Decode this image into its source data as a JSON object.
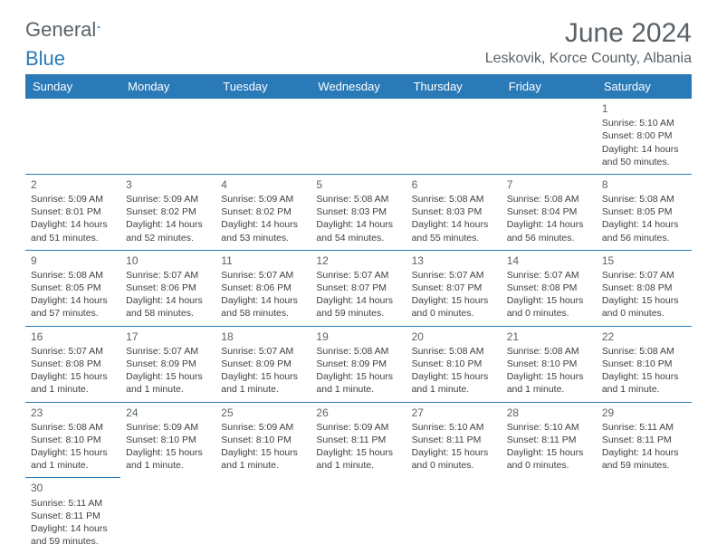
{
  "logo": {
    "text1": "General",
    "text2": "Blue"
  },
  "header": {
    "month_title": "June 2024",
    "location": "Leskovik, Korce County, Albania"
  },
  "colors": {
    "header_bg": "#2a7ab8",
    "header_text": "#ffffff",
    "border": "#2a7ab8",
    "body_text": "#404040",
    "title_text": "#5a6268"
  },
  "weekdays": [
    "Sunday",
    "Monday",
    "Tuesday",
    "Wednesday",
    "Thursday",
    "Friday",
    "Saturday"
  ],
  "weeks": [
    [
      null,
      null,
      null,
      null,
      null,
      null,
      {
        "day": "1",
        "sunrise": "Sunrise: 5:10 AM",
        "sunset": "Sunset: 8:00 PM",
        "daylight": "Daylight: 14 hours and 50 minutes."
      }
    ],
    [
      {
        "day": "2",
        "sunrise": "Sunrise: 5:09 AM",
        "sunset": "Sunset: 8:01 PM",
        "daylight": "Daylight: 14 hours and 51 minutes."
      },
      {
        "day": "3",
        "sunrise": "Sunrise: 5:09 AM",
        "sunset": "Sunset: 8:02 PM",
        "daylight": "Daylight: 14 hours and 52 minutes."
      },
      {
        "day": "4",
        "sunrise": "Sunrise: 5:09 AM",
        "sunset": "Sunset: 8:02 PM",
        "daylight": "Daylight: 14 hours and 53 minutes."
      },
      {
        "day": "5",
        "sunrise": "Sunrise: 5:08 AM",
        "sunset": "Sunset: 8:03 PM",
        "daylight": "Daylight: 14 hours and 54 minutes."
      },
      {
        "day": "6",
        "sunrise": "Sunrise: 5:08 AM",
        "sunset": "Sunset: 8:03 PM",
        "daylight": "Daylight: 14 hours and 55 minutes."
      },
      {
        "day": "7",
        "sunrise": "Sunrise: 5:08 AM",
        "sunset": "Sunset: 8:04 PM",
        "daylight": "Daylight: 14 hours and 56 minutes."
      },
      {
        "day": "8",
        "sunrise": "Sunrise: 5:08 AM",
        "sunset": "Sunset: 8:05 PM",
        "daylight": "Daylight: 14 hours and 56 minutes."
      }
    ],
    [
      {
        "day": "9",
        "sunrise": "Sunrise: 5:08 AM",
        "sunset": "Sunset: 8:05 PM",
        "daylight": "Daylight: 14 hours and 57 minutes."
      },
      {
        "day": "10",
        "sunrise": "Sunrise: 5:07 AM",
        "sunset": "Sunset: 8:06 PM",
        "daylight": "Daylight: 14 hours and 58 minutes."
      },
      {
        "day": "11",
        "sunrise": "Sunrise: 5:07 AM",
        "sunset": "Sunset: 8:06 PM",
        "daylight": "Daylight: 14 hours and 58 minutes."
      },
      {
        "day": "12",
        "sunrise": "Sunrise: 5:07 AM",
        "sunset": "Sunset: 8:07 PM",
        "daylight": "Daylight: 14 hours and 59 minutes."
      },
      {
        "day": "13",
        "sunrise": "Sunrise: 5:07 AM",
        "sunset": "Sunset: 8:07 PM",
        "daylight": "Daylight: 15 hours and 0 minutes."
      },
      {
        "day": "14",
        "sunrise": "Sunrise: 5:07 AM",
        "sunset": "Sunset: 8:08 PM",
        "daylight": "Daylight: 15 hours and 0 minutes."
      },
      {
        "day": "15",
        "sunrise": "Sunrise: 5:07 AM",
        "sunset": "Sunset: 8:08 PM",
        "daylight": "Daylight: 15 hours and 0 minutes."
      }
    ],
    [
      {
        "day": "16",
        "sunrise": "Sunrise: 5:07 AM",
        "sunset": "Sunset: 8:08 PM",
        "daylight": "Daylight: 15 hours and 1 minute."
      },
      {
        "day": "17",
        "sunrise": "Sunrise: 5:07 AM",
        "sunset": "Sunset: 8:09 PM",
        "daylight": "Daylight: 15 hours and 1 minute."
      },
      {
        "day": "18",
        "sunrise": "Sunrise: 5:07 AM",
        "sunset": "Sunset: 8:09 PM",
        "daylight": "Daylight: 15 hours and 1 minute."
      },
      {
        "day": "19",
        "sunrise": "Sunrise: 5:08 AM",
        "sunset": "Sunset: 8:09 PM",
        "daylight": "Daylight: 15 hours and 1 minute."
      },
      {
        "day": "20",
        "sunrise": "Sunrise: 5:08 AM",
        "sunset": "Sunset: 8:10 PM",
        "daylight": "Daylight: 15 hours and 1 minute."
      },
      {
        "day": "21",
        "sunrise": "Sunrise: 5:08 AM",
        "sunset": "Sunset: 8:10 PM",
        "daylight": "Daylight: 15 hours and 1 minute."
      },
      {
        "day": "22",
        "sunrise": "Sunrise: 5:08 AM",
        "sunset": "Sunset: 8:10 PM",
        "daylight": "Daylight: 15 hours and 1 minute."
      }
    ],
    [
      {
        "day": "23",
        "sunrise": "Sunrise: 5:08 AM",
        "sunset": "Sunset: 8:10 PM",
        "daylight": "Daylight: 15 hours and 1 minute."
      },
      {
        "day": "24",
        "sunrise": "Sunrise: 5:09 AM",
        "sunset": "Sunset: 8:10 PM",
        "daylight": "Daylight: 15 hours and 1 minute."
      },
      {
        "day": "25",
        "sunrise": "Sunrise: 5:09 AM",
        "sunset": "Sunset: 8:10 PM",
        "daylight": "Daylight: 15 hours and 1 minute."
      },
      {
        "day": "26",
        "sunrise": "Sunrise: 5:09 AM",
        "sunset": "Sunset: 8:11 PM",
        "daylight": "Daylight: 15 hours and 1 minute."
      },
      {
        "day": "27",
        "sunrise": "Sunrise: 5:10 AM",
        "sunset": "Sunset: 8:11 PM",
        "daylight": "Daylight: 15 hours and 0 minutes."
      },
      {
        "day": "28",
        "sunrise": "Sunrise: 5:10 AM",
        "sunset": "Sunset: 8:11 PM",
        "daylight": "Daylight: 15 hours and 0 minutes."
      },
      {
        "day": "29",
        "sunrise": "Sunrise: 5:11 AM",
        "sunset": "Sunset: 8:11 PM",
        "daylight": "Daylight: 14 hours and 59 minutes."
      }
    ],
    [
      {
        "day": "30",
        "sunrise": "Sunrise: 5:11 AM",
        "sunset": "Sunset: 8:11 PM",
        "daylight": "Daylight: 14 hours and 59 minutes."
      },
      null,
      null,
      null,
      null,
      null,
      null
    ]
  ]
}
